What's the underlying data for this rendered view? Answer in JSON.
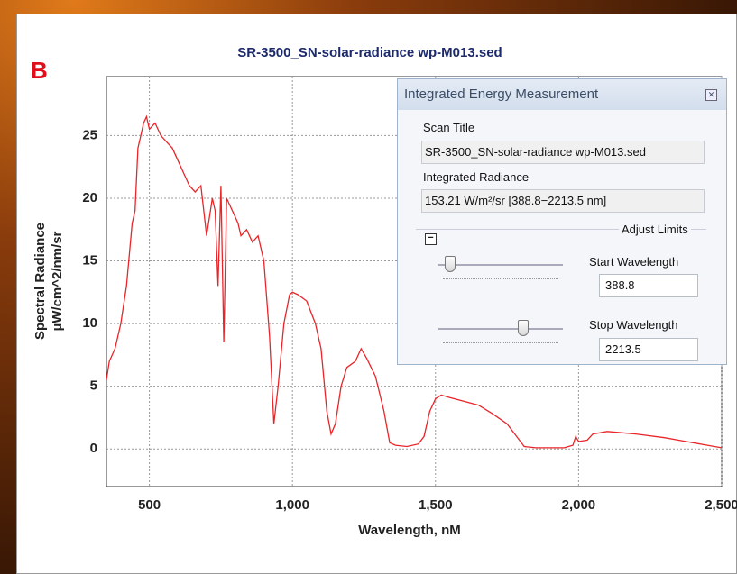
{
  "panel_label": "B",
  "chart_data": {
    "type": "line",
    "title": "SR-3500_SN-solar-radiance  wp-M013.sed",
    "xlabel": "Wavelength, nM",
    "ylabel": [
      "Spectral Radiance",
      "µW/cm^2/nm/sr"
    ],
    "x": [
      350,
      360,
      380,
      400,
      420,
      440,
      450,
      460,
      470,
      480,
      490,
      500,
      520,
      540,
      560,
      580,
      600,
      620,
      640,
      660,
      680,
      690,
      700,
      720,
      730,
      740,
      750,
      760,
      770,
      790,
      810,
      820,
      840,
      860,
      880,
      900,
      920,
      935,
      950,
      970,
      990,
      1000,
      1020,
      1050,
      1080,
      1100,
      1120,
      1135,
      1150,
      1170,
      1190,
      1220,
      1240,
      1260,
      1290,
      1320,
      1340,
      1360,
      1400,
      1440,
      1460,
      1480,
      1500,
      1520,
      1550,
      1600,
      1650,
      1700,
      1750,
      1790,
      1810,
      1850,
      1950,
      1980,
      1990,
      2000,
      2030,
      2050,
      2100,
      2150,
      2200,
      2300,
      2400,
      2450,
      2500
    ],
    "series": [
      {
        "name": "Spectral Radiance",
        "color": "#e8262a",
        "values": [
          5.5,
          7,
          8,
          10,
          13,
          18,
          19,
          24,
          25,
          26,
          26.5,
          25.5,
          26,
          25,
          24.5,
          24,
          23,
          22,
          21,
          20.5,
          21,
          19,
          17,
          20,
          19,
          13,
          21,
          8.5,
          20,
          19,
          18,
          17,
          17.5,
          16.5,
          17,
          15,
          9,
          2,
          5,
          10,
          12.3,
          12.5,
          12.3,
          11.8,
          10,
          8,
          3,
          1.2,
          2,
          5,
          6.5,
          7,
          8,
          7.2,
          5.8,
          3,
          0.5,
          0.3,
          0.2,
          0.4,
          1,
          3,
          4,
          4.3,
          4.1,
          3.8,
          3.5,
          2.8,
          2,
          0.8,
          0.2,
          0.1,
          0.1,
          0.3,
          1,
          0.6,
          0.7,
          1.2,
          1.4,
          1.3,
          1.2,
          0.9,
          0.5,
          0.3,
          0.1
        ]
      }
    ],
    "xlim": [
      350,
      2500
    ],
    "ylim": [
      -3,
      29.7
    ],
    "xticks": [
      {
        "value": 500,
        "label": "500"
      },
      {
        "value": 1000,
        "label": "1,000"
      },
      {
        "value": 1500,
        "label": "1,500"
      },
      {
        "value": 2000,
        "label": "2,000"
      },
      {
        "value": 2500,
        "label": "2,500"
      }
    ],
    "yticks": [
      0,
      5,
      10,
      15,
      20,
      25
    ],
    "grid": true
  },
  "dialog": {
    "title": "Integrated Energy Measurement",
    "scan_title_label": "Scan Title",
    "scan_title": "SR-3500_SN-solar-radiance wp-M013.sed",
    "radiance_label": "Integrated Radiance",
    "radiance": "153.21 W/m²/sr [388.8−2213.5 nm]",
    "limits_label": "Adjust Limits",
    "start_label": "Start Wavelength",
    "start": "388.8",
    "stop_label": "Stop Wavelength",
    "stop": "2213.5"
  }
}
